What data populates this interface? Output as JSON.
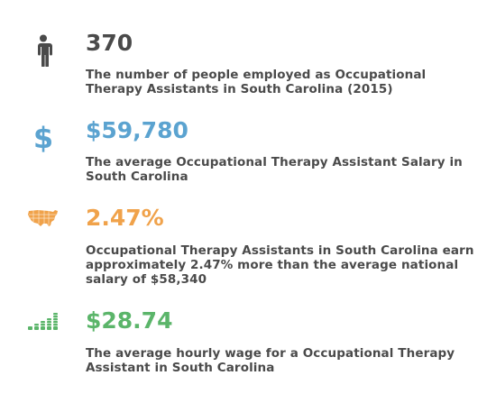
{
  "colors": {
    "dark": "#4a4a4a",
    "blue": "#5ba3d0",
    "orange": "#f0a24a",
    "green": "#5bb56a"
  },
  "stats": [
    {
      "icon": "person-icon",
      "value": "370",
      "description": "The number of people employed as Occupational Therapy Assistants in South Carolina (2015)"
    },
    {
      "icon": "dollar-icon",
      "value": "$59,780",
      "description": "The average Occupational Therapy Assistant Salary in South Carolina"
    },
    {
      "icon": "usa-map-icon",
      "value": "2.47%",
      "description": "Occupational Therapy Assistants in South Carolina earn approximately 2.47% more than the average national salary of $58,340"
    },
    {
      "icon": "coin-stacks-icon",
      "value": "$28.74",
      "description": "The average hourly wage for a  Occupational Therapy Assistant in South Carolina"
    }
  ]
}
